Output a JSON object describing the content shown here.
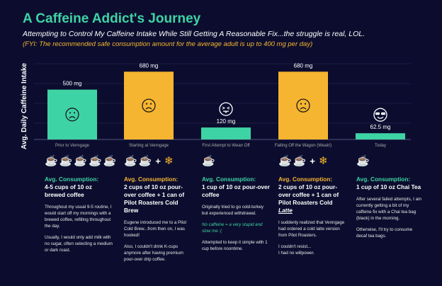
{
  "header": {
    "title": "A Caffeine Addict's Journey",
    "subtitle": "Attempting to Control My Caffeine Intake While Still Getting A Reasonable Fix...the struggle is real, LOL.",
    "fyi": "(FYI: The recommended safe consumption amount for the average adult is up to 400 mg per day)"
  },
  "colors": {
    "green": "#3ed3a4",
    "orange": "#f6b530",
    "background": "#0c0d2e",
    "gridline": "#2a2d5a"
  },
  "chart_data": {
    "type": "bar",
    "ylabel": "Avg. Daily Caffeine Intake",
    "xlabel": "",
    "ylim": [
      0,
      760
    ],
    "grid": true,
    "categories": [
      "Prior to Venngage",
      "Starting at Venngage",
      "First Attempt to Wean Off",
      "Falling Off the Wagon (Weak!)",
      "Today"
    ],
    "values": [
      500,
      680,
      120,
      680,
      62.5
    ],
    "value_labels": [
      "500 mg",
      "680 mg",
      "120 mg",
      "680 mg",
      "62.5 mg"
    ],
    "bar_colors": [
      "#3ed3a4",
      "#f6b530",
      "#3ed3a4",
      "#f6b530",
      "#3ed3a4"
    ],
    "faces": [
      "sad-face-icon",
      "sad-face-icon",
      "tongue-out-face-icon",
      "sad-face-icon",
      "sunglasses-face-icon"
    ]
  },
  "columns": [
    {
      "heading": "Avg. Consumption:",
      "consumption": "4-5 cups of 10 oz brewed coffee",
      "color": "#3ed3a4",
      "icons": [
        "coffee-cup-icon",
        "coffee-cup-icon",
        "coffee-cup-icon",
        "coffee-cup-icon",
        "coffee-cup-icon"
      ],
      "paragraphs": [
        "Throughout my usual 9-5 routine, I would start off my mornings with a brewed coffee, refilling throughout the day.",
        "Usually, I would only add milk with no sugar, often selecting a medium or dark roast."
      ]
    },
    {
      "heading": "Avg. Consumption:",
      "consumption": "2 cups of 10 oz pour-over coffee + 1 can of Pilot Roasters Cold Brew",
      "color": "#f6b530",
      "icons": [
        "pour-over-coffee-icon",
        "pour-over-coffee-icon",
        "plus-icon",
        "snowflake-icon"
      ],
      "paragraphs": [
        "Eugene introduced me to a Pilot Cold Brew...from then on, I was hooked!",
        "Also, I couldn't drink K-cups anymore after having premium pour-over drip coffee."
      ]
    },
    {
      "heading": "Avg. Consumption:",
      "consumption": "1 cup of 10 oz pour-over coffee",
      "color": "#3ed3a4",
      "icons": [
        "pour-over-coffee-icon"
      ],
      "paragraphs": [
        "Originally tried to go cold-turkey but experienced withdrawal.",
        "No caffeine = a very stupid and slow me :(",
        "Attempted to keep it simple with 1 cup before noontime."
      ]
    },
    {
      "heading": "Avg. Consumption:",
      "consumption": "2 cups of 10 oz pour-over coffee + 1 can of Pilot Roasters Cold",
      "consumption_emph": "Latte",
      "color": "#f6b530",
      "icons": [
        "pour-over-coffee-icon",
        "pour-over-coffee-icon",
        "plus-icon",
        "snowflake-icon"
      ],
      "paragraphs": [
        "I suddenly realized that Venngage had ordered a cold latte version from Pilot Roasters.",
        "I couldn't resist...\nI had no willpower."
      ]
    },
    {
      "heading": "Avg. Consumption:",
      "consumption": "1 cup of 10 oz Chai Tea",
      "color": "#3ed3a4",
      "icons": [
        "tea-cup-icon"
      ],
      "paragraphs": [
        "After several failed attempts, I am currently getting a bit of my caffeine fix with a Chai tea bag (black) in the morning.",
        "Otherwise, I'll try to consume decaf tea bags."
      ]
    }
  ]
}
